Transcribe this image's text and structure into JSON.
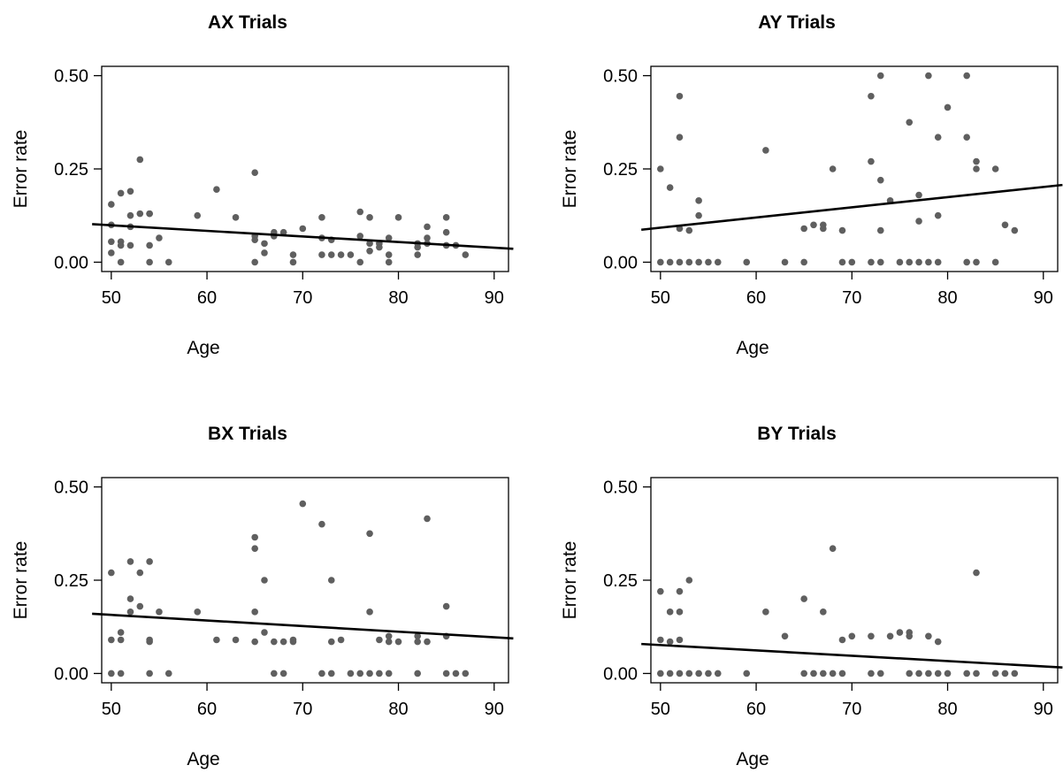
{
  "chart_data": [
    {
      "type": "scatter",
      "title": "AX Trials",
      "xlabel": "Age",
      "ylabel": "Error rate",
      "xlim": [
        48,
        92
      ],
      "ylim": [
        0,
        0.5
      ],
      "xticks": [
        "50",
        "60",
        "70",
        "80",
        "90"
      ],
      "yticks": [
        "0.00",
        "0.25",
        "0.50"
      ],
      "grid": false,
      "point_color": "#5f5f5f",
      "points": [
        [
          50,
          0.155
        ],
        [
          50,
          0.1
        ],
        [
          50,
          0.055
        ],
        [
          50,
          0.025
        ],
        [
          51,
          0.185
        ],
        [
          51,
          0.055
        ],
        [
          51,
          0.045
        ],
        [
          51,
          0.0
        ],
        [
          52,
          0.19
        ],
        [
          52,
          0.125
        ],
        [
          52,
          0.095
        ],
        [
          52,
          0.045
        ],
        [
          53,
          0.275
        ],
        [
          53,
          0.13
        ],
        [
          54,
          0.13
        ],
        [
          54,
          0.13
        ],
        [
          54,
          0.045
        ],
        [
          54,
          0.0
        ],
        [
          55,
          0.065
        ],
        [
          56,
          0.0
        ],
        [
          59,
          0.125
        ],
        [
          61,
          0.195
        ],
        [
          63,
          0.12
        ],
        [
          65,
          0.24
        ],
        [
          65,
          0.07
        ],
        [
          65,
          0.06
        ],
        [
          65,
          0.0
        ],
        [
          66,
          0.05
        ],
        [
          66,
          0.025
        ],
        [
          67,
          0.08
        ],
        [
          67,
          0.07
        ],
        [
          68,
          0.08
        ],
        [
          69,
          0.02
        ],
        [
          69,
          0.0
        ],
        [
          70,
          0.09
        ],
        [
          72,
          0.12
        ],
        [
          72,
          0.065
        ],
        [
          72,
          0.02
        ],
        [
          73,
          0.06
        ],
        [
          73,
          0.02
        ],
        [
          74,
          0.02
        ],
        [
          75,
          0.02
        ],
        [
          76,
          0.135
        ],
        [
          76,
          0.07
        ],
        [
          76,
          0.0
        ],
        [
          77,
          0.12
        ],
        [
          77,
          0.05
        ],
        [
          77,
          0.03
        ],
        [
          78,
          0.05
        ],
        [
          78,
          0.04
        ],
        [
          79,
          0.065
        ],
        [
          79,
          0.02
        ],
        [
          79,
          0.0
        ],
        [
          80,
          0.12
        ],
        [
          82,
          0.05
        ],
        [
          82,
          0.04
        ],
        [
          82,
          0.02
        ],
        [
          83,
          0.095
        ],
        [
          83,
          0.065
        ],
        [
          83,
          0.05
        ],
        [
          85,
          0.12
        ],
        [
          85,
          0.08
        ],
        [
          85,
          0.045
        ],
        [
          86,
          0.045
        ],
        [
          87,
          0.02
        ]
      ],
      "fit_line": {
        "x": [
          48,
          92
        ],
        "y": [
          0.102,
          0.036
        ],
        "color": "#000000"
      }
    },
    {
      "type": "scatter",
      "title": "AY Trials",
      "xlabel": "Age",
      "ylabel": "Error rate",
      "xlim": [
        48,
        92
      ],
      "ylim": [
        0,
        0.5
      ],
      "xticks": [
        "50",
        "60",
        "70",
        "80",
        "90"
      ],
      "yticks": [
        "0.00",
        "0.25",
        "0.50"
      ],
      "grid": false,
      "point_color": "#5f5f5f",
      "points": [
        [
          50,
          0.25
        ],
        [
          50,
          0.0
        ],
        [
          51,
          0.2
        ],
        [
          51,
          0.0
        ],
        [
          52,
          0.445
        ],
        [
          52,
          0.335
        ],
        [
          52,
          0.09
        ],
        [
          52,
          0.0
        ],
        [
          53,
          0.085
        ],
        [
          53,
          0.0
        ],
        [
          54,
          0.165
        ],
        [
          54,
          0.125
        ],
        [
          54,
          0.0
        ],
        [
          55,
          0.0
        ],
        [
          56,
          0.0
        ],
        [
          59,
          0.0
        ],
        [
          61,
          0.3
        ],
        [
          63,
          0.0
        ],
        [
          65,
          0.09
        ],
        [
          65,
          0.0
        ],
        [
          66,
          0.1
        ],
        [
          67,
          0.1
        ],
        [
          67,
          0.09
        ],
        [
          68,
          0.25
        ],
        [
          69,
          0.085
        ],
        [
          69,
          0.0
        ],
        [
          70,
          0.0
        ],
        [
          72,
          0.445
        ],
        [
          72,
          0.27
        ],
        [
          72,
          0.0
        ],
        [
          73,
          0.5
        ],
        [
          73,
          0.22
        ],
        [
          73,
          0.085
        ],
        [
          73,
          0.0
        ],
        [
          74,
          0.165
        ],
        [
          75,
          0.0
        ],
        [
          76,
          0.375
        ],
        [
          76,
          0.0
        ],
        [
          77,
          0.18
        ],
        [
          77,
          0.11
        ],
        [
          77,
          0.0
        ],
        [
          78,
          0.5
        ],
        [
          78,
          0.0
        ],
        [
          79,
          0.335
        ],
        [
          79,
          0.125
        ],
        [
          79,
          0.0
        ],
        [
          80,
          0.415
        ],
        [
          82,
          0.5
        ],
        [
          82,
          0.335
        ],
        [
          82,
          0.0
        ],
        [
          83,
          0.27
        ],
        [
          83,
          0.25
        ],
        [
          83,
          0.0
        ],
        [
          85,
          0.25
        ],
        [
          85,
          0.0
        ],
        [
          86,
          0.1
        ],
        [
          87,
          0.085
        ]
      ],
      "fit_line": {
        "x": [
          48,
          92
        ],
        "y": [
          0.087,
          0.207
        ],
        "color": "#000000"
      }
    },
    {
      "type": "scatter",
      "title": "BX Trials",
      "xlabel": "Age",
      "ylabel": "Error rate",
      "xlim": [
        48,
        92
      ],
      "ylim": [
        0,
        0.5
      ],
      "xticks": [
        "50",
        "60",
        "70",
        "80",
        "90"
      ],
      "yticks": [
        "0.00",
        "0.25",
        "0.50"
      ],
      "grid": false,
      "point_color": "#5f5f5f",
      "points": [
        [
          50,
          0.27
        ],
        [
          50,
          0.09
        ],
        [
          50,
          0.0
        ],
        [
          51,
          0.11
        ],
        [
          51,
          0.09
        ],
        [
          51,
          0.0
        ],
        [
          52,
          0.3
        ],
        [
          52,
          0.2
        ],
        [
          52,
          0.165
        ],
        [
          53,
          0.27
        ],
        [
          53,
          0.18
        ],
        [
          54,
          0.3
        ],
        [
          54,
          0.09
        ],
        [
          54,
          0.085
        ],
        [
          54,
          0.0
        ],
        [
          55,
          0.165
        ],
        [
          56,
          0.0
        ],
        [
          59,
          0.165
        ],
        [
          61,
          0.09
        ],
        [
          63,
          0.09
        ],
        [
          65,
          0.365
        ],
        [
          65,
          0.335
        ],
        [
          65,
          0.165
        ],
        [
          65,
          0.085
        ],
        [
          66,
          0.25
        ],
        [
          66,
          0.11
        ],
        [
          67,
          0.085
        ],
        [
          67,
          0.0
        ],
        [
          68,
          0.085
        ],
        [
          68,
          0.0
        ],
        [
          69,
          0.09
        ],
        [
          69,
          0.085
        ],
        [
          70,
          0.455
        ],
        [
          72,
          0.4
        ],
        [
          72,
          0.0
        ],
        [
          73,
          0.25
        ],
        [
          73,
          0.085
        ],
        [
          73,
          0.0
        ],
        [
          74,
          0.09
        ],
        [
          75,
          0.0
        ],
        [
          76,
          0.0
        ],
        [
          77,
          0.375
        ],
        [
          77,
          0.165
        ],
        [
          77,
          0.0
        ],
        [
          78,
          0.09
        ],
        [
          78,
          0.0
        ],
        [
          79,
          0.1
        ],
        [
          79,
          0.085
        ],
        [
          79,
          0.0
        ],
        [
          80,
          0.085
        ],
        [
          82,
          0.1
        ],
        [
          82,
          0.085
        ],
        [
          82,
          0.0
        ],
        [
          83,
          0.415
        ],
        [
          83,
          0.085
        ],
        [
          85,
          0.18
        ],
        [
          85,
          0.1
        ],
        [
          85,
          0.0
        ],
        [
          86,
          0.0
        ],
        [
          87,
          0.0
        ]
      ],
      "fit_line": {
        "x": [
          48,
          92
        ],
        "y": [
          0.16,
          0.094
        ],
        "color": "#000000"
      }
    },
    {
      "type": "scatter",
      "title": "BY Trials",
      "xlabel": "Age",
      "ylabel": "Error rate",
      "xlim": [
        48,
        92
      ],
      "ylim": [
        0,
        0.5
      ],
      "xticks": [
        "50",
        "60",
        "70",
        "80",
        "90"
      ],
      "yticks": [
        "0.00",
        "0.25",
        "0.50"
      ],
      "grid": false,
      "point_color": "#5f5f5f",
      "points": [
        [
          50,
          0.22
        ],
        [
          50,
          0.09
        ],
        [
          50,
          0.0
        ],
        [
          51,
          0.165
        ],
        [
          51,
          0.085
        ],
        [
          51,
          0.0
        ],
        [
          52,
          0.22
        ],
        [
          52,
          0.165
        ],
        [
          52,
          0.09
        ],
        [
          52,
          0.0
        ],
        [
          53,
          0.25
        ],
        [
          53,
          0.0
        ],
        [
          54,
          0.0
        ],
        [
          55,
          0.0
        ],
        [
          56,
          0.0
        ],
        [
          59,
          0.0
        ],
        [
          61,
          0.165
        ],
        [
          63,
          0.1
        ],
        [
          65,
          0.2
        ],
        [
          65,
          0.0
        ],
        [
          66,
          0.0
        ],
        [
          67,
          0.165
        ],
        [
          67,
          0.0
        ],
        [
          68,
          0.335
        ],
        [
          68,
          0.0
        ],
        [
          69,
          0.09
        ],
        [
          69,
          0.0
        ],
        [
          70,
          0.1
        ],
        [
          72,
          0.1
        ],
        [
          72,
          0.0
        ],
        [
          73,
          0.0
        ],
        [
          74,
          0.1
        ],
        [
          75,
          0.11
        ],
        [
          76,
          0.11
        ],
        [
          76,
          0.1
        ],
        [
          76,
          0.0
        ],
        [
          77,
          0.0
        ],
        [
          78,
          0.1
        ],
        [
          78,
          0.0
        ],
        [
          79,
          0.085
        ],
        [
          79,
          0.0
        ],
        [
          80,
          0.0
        ],
        [
          82,
          0.0
        ],
        [
          83,
          0.27
        ],
        [
          83,
          0.0
        ],
        [
          85,
          0.0
        ],
        [
          86,
          0.0
        ],
        [
          87,
          0.0
        ]
      ],
      "fit_line": {
        "x": [
          48,
          92
        ],
        "y": [
          0.079,
          0.016
        ],
        "color": "#000000"
      }
    }
  ]
}
